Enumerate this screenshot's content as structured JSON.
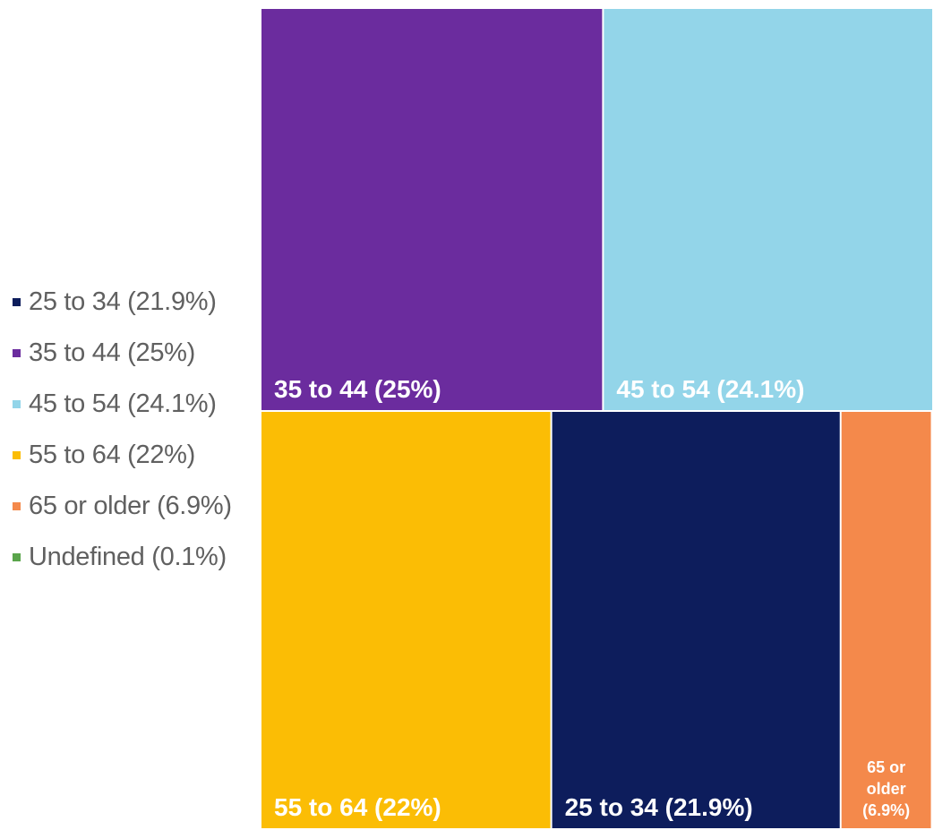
{
  "chart_data": {
    "type": "treemap",
    "title": "",
    "series": [
      {
        "name": "25 to 34",
        "value": 21.9,
        "color": "#0d1d5c",
        "legend_label": "25 to 34 (21.9%)",
        "cell_label": "25 to 34 (21.9%)"
      },
      {
        "name": "35 to 44",
        "value": 25,
        "color": "#6b2c9e",
        "legend_label": "35 to 44 (25%)",
        "cell_label": "35 to 44 (25%)"
      },
      {
        "name": "45 to 54",
        "value": 24.1,
        "color": "#93d5e9",
        "legend_label": "45 to 54 (24.1%)",
        "cell_label": "45 to 54 (24.1%)"
      },
      {
        "name": "55 to 64",
        "value": 22,
        "color": "#fbbd05",
        "legend_label": "55 to 64 (22%)",
        "cell_label": "55 to 64 (22%)"
      },
      {
        "name": "65 or older",
        "value": 6.9,
        "color": "#f4894b",
        "legend_label": "65 or older (6.9%)",
        "cell_label": "65 or older (6.9%)",
        "cell_label_lines": [
          "65 or",
          "older",
          "(6.9%)"
        ]
      },
      {
        "name": "Undefined",
        "value": 0.1,
        "color": "#5aa54b",
        "legend_label": "Undefined (0.1%)"
      }
    ],
    "legend_position": "left",
    "unit": "%"
  }
}
